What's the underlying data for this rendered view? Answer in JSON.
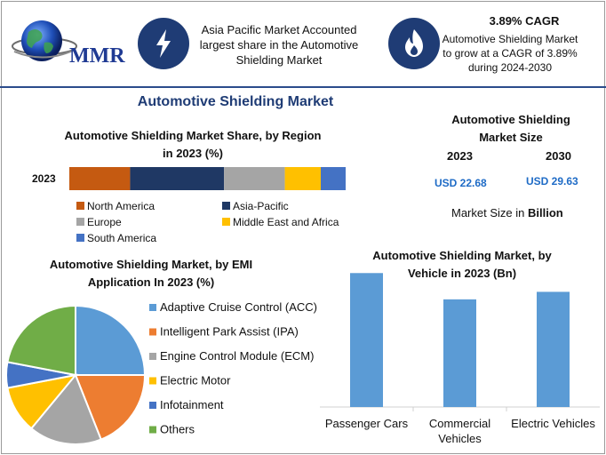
{
  "brand": {
    "logo_text": "MMR"
  },
  "header": {
    "fact1": {
      "icon": "lightning-icon",
      "text": "Asia Pacific Market Accounted largest share in the Automotive Shielding Market"
    },
    "fact2": {
      "icon": "flame-icon",
      "title": "3.89% CAGR",
      "text": "Automotive Shielding Market to grow at a CAGR of 3.89% during 2024-2030"
    }
  },
  "main_title": "Automotive Shielding Market",
  "colors": {
    "accent": "#1f3c75",
    "value_blue": "#1e6bc6",
    "bar_blue": "#5b9bd5"
  },
  "market_size": {
    "title": "Automotive Shielding Market Size",
    "year1": "2023",
    "year2": "2030",
    "value1": "USD 22.68",
    "value2": "USD 29.63",
    "unit_note_prefix": "Market Size in ",
    "unit_note_bold": "Billion"
  },
  "chart_data": [
    {
      "id": "region-share",
      "type": "bar",
      "orientation": "horizontal-stacked-100",
      "title": "Automotive Shielding Market Share, by Region in 2023 (%)",
      "categories": [
        "2023"
      ],
      "series": [
        {
          "name": "North America",
          "color": "#c55a11",
          "values": [
            22
          ]
        },
        {
          "name": "Asia-Pacific",
          "color": "#1f3864",
          "values": [
            34
          ]
        },
        {
          "name": "Europe",
          "color": "#a5a5a5",
          "values": [
            22
          ]
        },
        {
          "name": "Middle East and Africa",
          "color": "#ffc000",
          "values": [
            13
          ]
        },
        {
          "name": "South America",
          "color": "#4472c4",
          "values": [
            9
          ]
        }
      ]
    },
    {
      "id": "emi-application",
      "type": "pie",
      "title": "Automotive Shielding Market, by EMI Application In 2023 (%)",
      "slices": [
        {
          "name": "Adaptive Cruise Control (ACC)",
          "color": "#5b9bd5",
          "value": 25
        },
        {
          "name": "Intelligent Park Assist (IPA)",
          "color": "#ed7d31",
          "value": 19
        },
        {
          "name": "Engine Control Module (ECM)",
          "color": "#a5a5a5",
          "value": 17
        },
        {
          "name": "Electric Motor",
          "color": "#ffc000",
          "value": 11
        },
        {
          "name": "Infotainment",
          "color": "#4472c4",
          "value": 6
        },
        {
          "name": "Others",
          "color": "#70ad47",
          "value": 22
        }
      ]
    },
    {
      "id": "vehicle",
      "type": "bar",
      "title": "Automotive Shielding Market, by Vehicle in 2023 (Bn)",
      "categories": [
        "Passenger Cars",
        "Commercial Vehicles",
        "Electric Vehicles"
      ],
      "values": [
        10.7,
        8.6,
        9.2
      ],
      "ylim": [
        0,
        11.5
      ],
      "grid": false
    }
  ]
}
